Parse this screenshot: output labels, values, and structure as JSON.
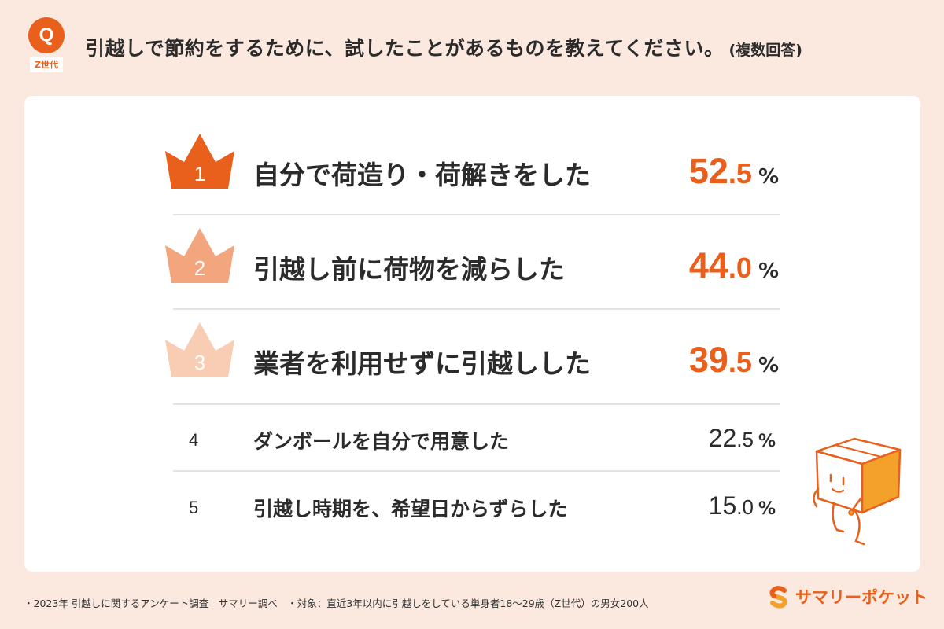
{
  "header": {
    "badge_letter": "Q",
    "badge_tag": "Z世代",
    "question": "引越しで節約をするために、試したことがあるものを教えてください。",
    "question_note": "(複数回答)"
  },
  "ranking": [
    {
      "rank": "1",
      "label": "自分で荷造り・荷解きをした",
      "value_int": "52",
      "value_dec": ".5",
      "unit": "%",
      "value": 52.5,
      "crown_color": "#e8601c"
    },
    {
      "rank": "2",
      "label": "引越し前に荷物を減らした",
      "value_int": "44",
      "value_dec": ".0",
      "unit": "%",
      "value": 44.0,
      "crown_color": "#f3a57e"
    },
    {
      "rank": "3",
      "label": "業者を利用せずに引越しした",
      "value_int": "39",
      "value_dec": ".5",
      "unit": "%",
      "value": 39.5,
      "crown_color": "#f8cdb4"
    },
    {
      "rank": "4",
      "label": "ダンボールを自分で用意した",
      "value_int": "22",
      "value_dec": ".5",
      "unit": "%",
      "value": 22.5
    },
    {
      "rank": "5",
      "label": "引越し時期を、希望日からずらした",
      "value_int": "15",
      "value_dec": ".0",
      "unit": "%",
      "value": 15.0
    }
  ],
  "footer": {
    "note": "・2023年 引越しに関するアンケート調査　サマリー調べ　・対象：直近3年以内に引越しをしている単身者18〜29歳（Z世代）の男女200人"
  },
  "brand": {
    "name": "サマリーポケット",
    "accent": "#e8601c"
  },
  "icons": [
    "crown-icon",
    "mascot-box-character",
    "brand-logo-mark"
  ]
}
